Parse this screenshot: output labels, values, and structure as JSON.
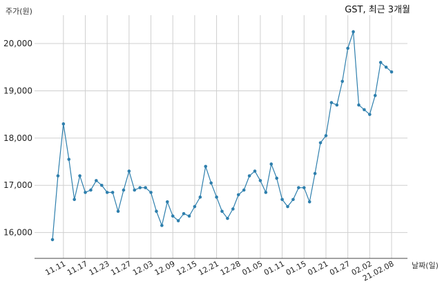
{
  "chart_data": {
    "type": "line",
    "title": "GST, 최근 3개월",
    "xlabel": "날짜(일)",
    "ylabel": "주가(원)",
    "ylim": [
      15600,
      20600
    ],
    "yticks": [
      16000,
      17000,
      18000,
      19000,
      20000
    ],
    "ytick_labels": [
      "16,000",
      "17,000",
      "18,000",
      "19,000",
      "20,000"
    ],
    "grid": true,
    "color": "#2e7fad",
    "xtick_labels": [
      "11.11",
      "11.17",
      "11.23",
      "11.27",
      "12.03",
      "12.09",
      "12.15",
      "12.21",
      "12.28",
      "01.05",
      "01.11",
      "01.15",
      "01.21",
      "01.27",
      "02.02",
      "21.02.08"
    ],
    "xtick_index": [
      2,
      6,
      10,
      14,
      18,
      22,
      26,
      30,
      34,
      38,
      42,
      46,
      50,
      54,
      58,
      62
    ],
    "values": [
      15850,
      17200,
      18300,
      17550,
      16700,
      17200,
      16850,
      16900,
      17100,
      17000,
      16850,
      16850,
      16450,
      16900,
      17300,
      16900,
      16950,
      16950,
      16850,
      16450,
      16150,
      16650,
      16350,
      16250,
      16400,
      16350,
      16550,
      16750,
      17400,
      17050,
      16750,
      16450,
      16300,
      16500,
      16800,
      16900,
      17200,
      17300,
      17100,
      16850,
      17450,
      17150,
      16700,
      16550,
      16700,
      16950,
      16950,
      16650,
      17250,
      17900,
      18050,
      18750,
      18700,
      19200,
      19900,
      20250,
      18700,
      18600,
      18500,
      18900,
      19600,
      19500,
      19400
    ]
  }
}
